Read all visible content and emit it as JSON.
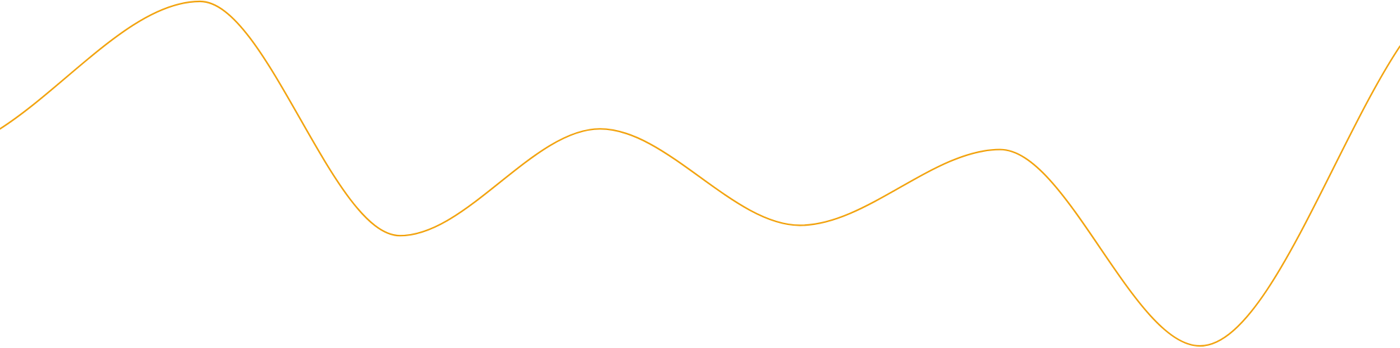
{
  "chart_data": {
    "type": "line",
    "title": "",
    "xlabel": "",
    "ylabel": "",
    "grid": false,
    "legend": "none",
    "x": [
      0,
      1,
      2,
      3,
      4,
      5,
      6,
      7
    ],
    "ylim": [
      0,
      100
    ],
    "series": [
      {
        "color": "#f2a20c",
        "values": [
          63,
          100,
          32,
          63,
          35,
          57,
          0,
          87
        ]
      }
    ]
  }
}
